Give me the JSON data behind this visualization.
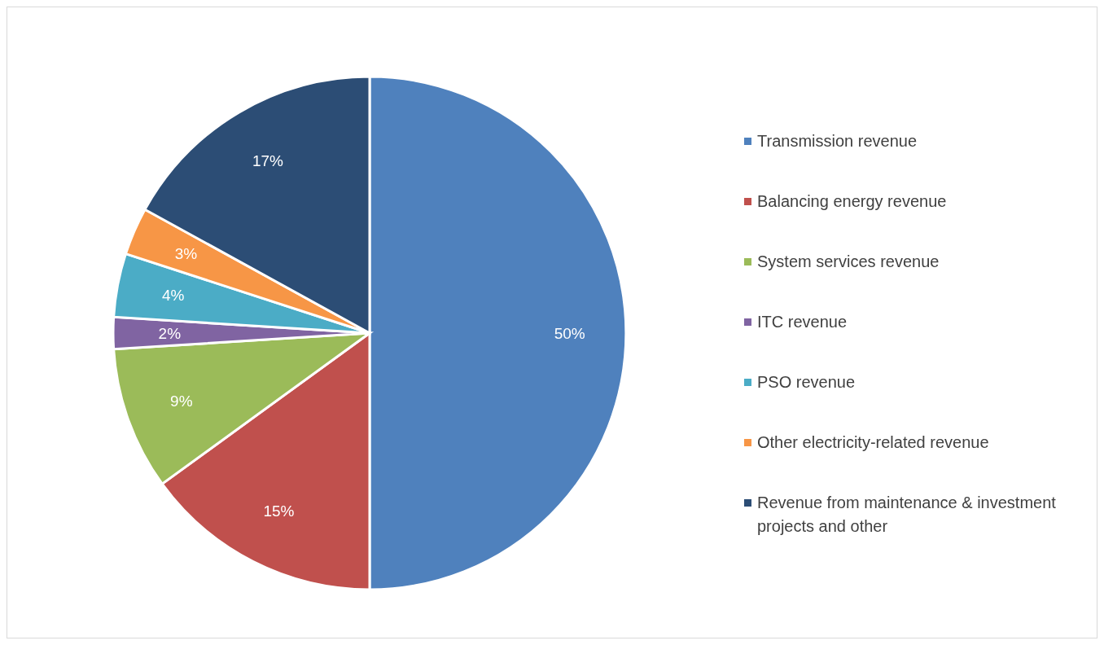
{
  "chart_data": {
    "type": "pie",
    "categories": [
      "Transmission revenue",
      "Balancing energy revenue",
      "System services revenue",
      "ITC revenue",
      "PSO revenue",
      "Other electricity-related revenue",
      "Revenue from maintenance & investment projects and other"
    ],
    "values": [
      50,
      15,
      9,
      2,
      4,
      3,
      17
    ],
    "colors": [
      "#4f81bd",
      "#c0504d",
      "#9bbb59",
      "#8064a2",
      "#4bacc6",
      "#f79646",
      "#2c4d75"
    ],
    "value_labels": [
      "50%",
      "15%",
      "9%",
      "2%",
      "4%",
      "3%",
      "17%"
    ],
    "legend": "right"
  }
}
